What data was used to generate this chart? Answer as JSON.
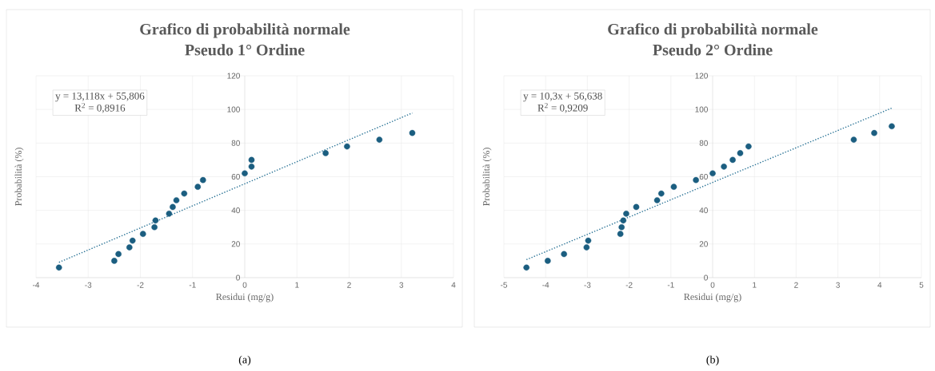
{
  "chart_data": [
    {
      "type": "scatter",
      "title": "Grafico di probabilità normale",
      "subtitle": "Pseudo 1° Ordine",
      "xlabel": "Residui (mg/g)",
      "ylabel": "Probabilità (%)",
      "annotations": [
        "y = 13,118x + 55,806",
        "R$^{2}$ = 0,8916",
        "(a)"
      ],
      "xlim": [
        -4,
        4
      ],
      "xticks": [
        -4,
        -3,
        -2,
        -1,
        0,
        1,
        2,
        3,
        4
      ],
      "ylim": [
        0,
        120
      ],
      "yticks": [
        0,
        20,
        40,
        60,
        80,
        100,
        120
      ],
      "grid": true,
      "series": [
        {
          "color": "#1b5e80",
          "marker": "circle",
          "x": [
            -3.56,
            -2.5,
            -2.42,
            -2.21,
            -2.15,
            -1.95,
            -1.73,
            -1.71,
            -1.45,
            -1.38,
            -1.31,
            -1.16,
            -0.9,
            -0.8,
            0.0,
            0.13,
            0.13,
            1.55,
            1.96,
            2.58,
            3.21
          ],
          "values": [
            6,
            10,
            14,
            18,
            22,
            26,
            30,
            34,
            38,
            42,
            46,
            50,
            54,
            58,
            62,
            66,
            70,
            74,
            78,
            82,
            86
          ]
        },
        {
          "type": "line",
          "color": "#2a7396",
          "line_style": "dotted",
          "marker": "none",
          "x": [
            -3.56,
            3.21
          ],
          "values": [
            9.1,
            97.9
          ]
        }
      ]
    },
    {
      "type": "scatter",
      "title": "Grafico di probabilità normale",
      "subtitle": "Pseudo 2° Ordine",
      "xlabel": "Residui (mg/g)",
      "ylabel": "Probabilità (%)",
      "annotations": [
        "y = 10,3x + 56,638",
        "R$^{2}$ = 0,9209",
        "(b)"
      ],
      "xlim": [
        -5,
        5
      ],
      "xticks": [
        -5,
        -4,
        -3,
        -2,
        -1,
        0,
        1,
        2,
        3,
        4,
        5
      ],
      "ylim": [
        0,
        120
      ],
      "yticks": [
        0,
        20,
        40,
        60,
        80,
        100,
        120
      ],
      "grid": true,
      "series": [
        {
          "color": "#1b5e80",
          "marker": "circle",
          "x": [
            -4.46,
            -3.95,
            -3.56,
            -3.02,
            -2.98,
            -2.21,
            -2.18,
            -2.14,
            -2.07,
            -1.83,
            -1.33,
            -1.23,
            -0.93,
            -0.4,
            0.0,
            0.27,
            0.48,
            0.66,
            0.86,
            3.38,
            3.87,
            4.29
          ],
          "values": [
            6,
            10,
            14,
            18,
            22,
            26,
            30,
            34,
            38,
            42,
            46,
            50,
            54,
            58,
            62,
            66,
            70,
            74,
            78,
            82,
            86,
            90
          ]
        },
        {
          "type": "line",
          "color": "#2a7396",
          "line_style": "dotted",
          "marker": "none",
          "x": [
            -4.46,
            4.29
          ],
          "values": [
            10.7,
            100.8
          ]
        }
      ]
    }
  ]
}
